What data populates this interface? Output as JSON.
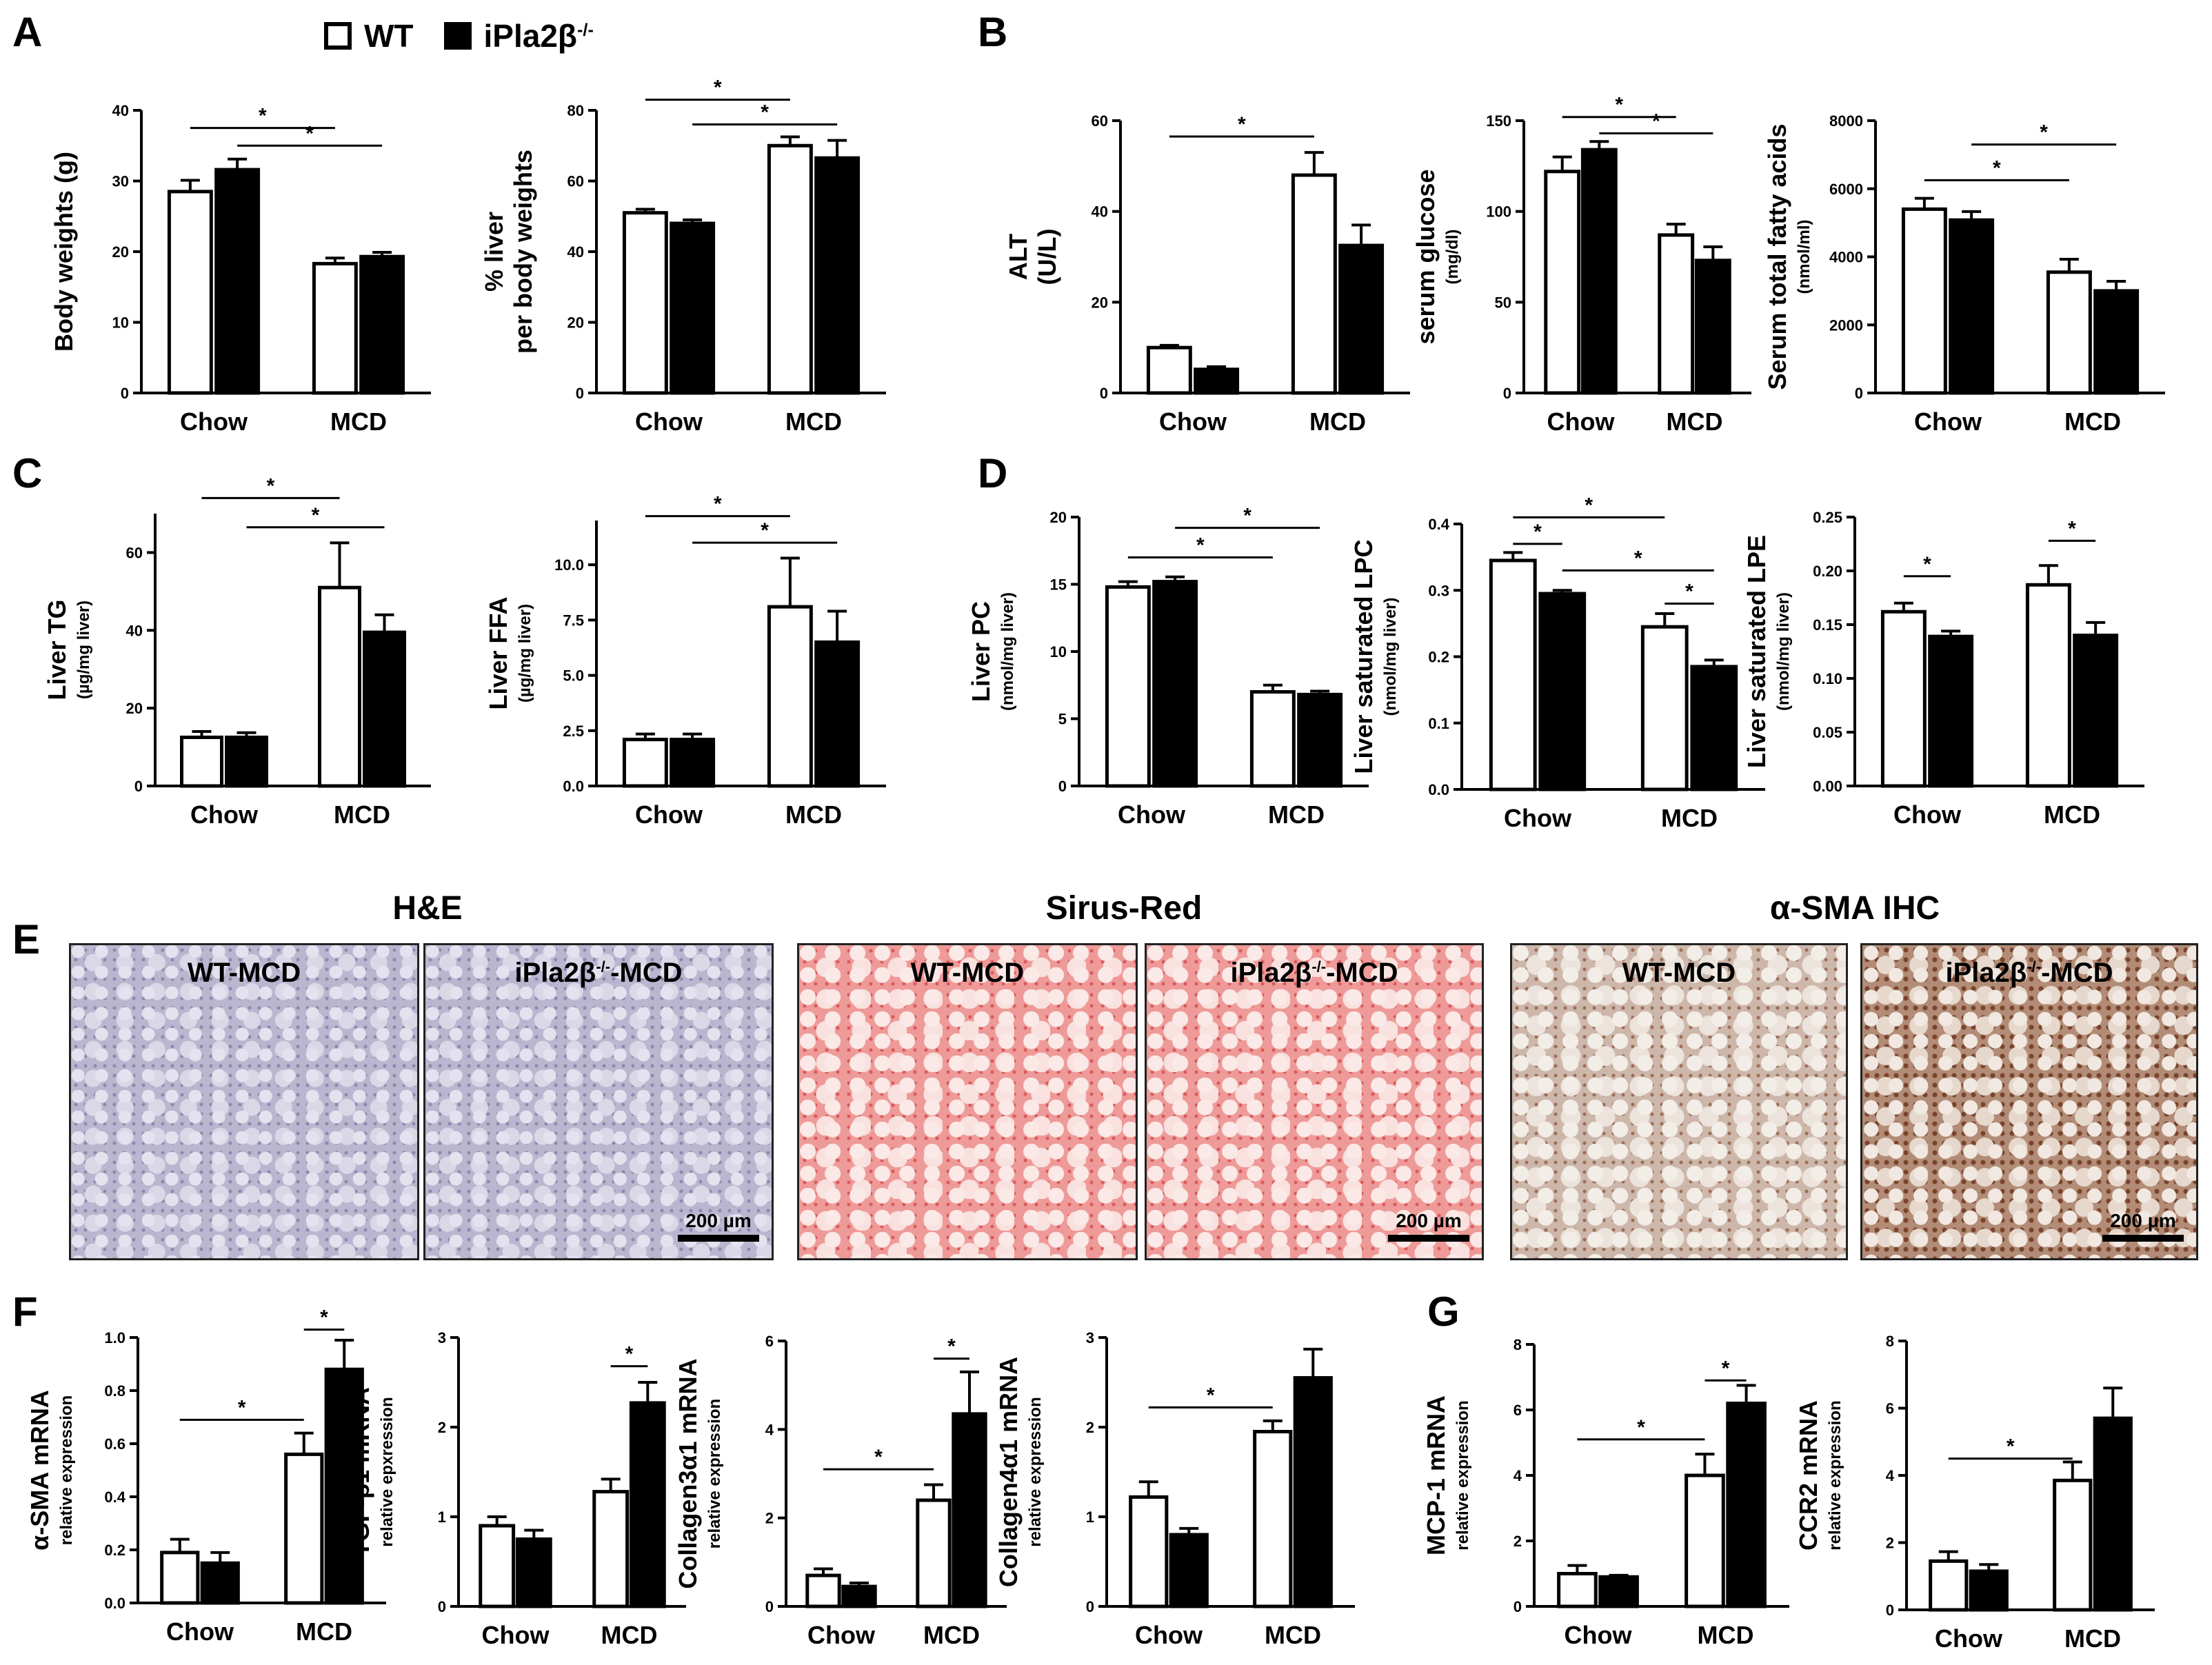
{
  "panel_letters": {
    "A": "A",
    "B": "B",
    "C": "C",
    "D": "D",
    "E": "E",
    "F": "F",
    "G": "G"
  },
  "legend": {
    "wt": "WT",
    "ko": "iPla2β",
    "ko_sup": "-/-"
  },
  "colors": {
    "wt_fill": "#ffffff",
    "ko_fill": "#000000",
    "stroke": "#000000"
  },
  "micrographs": {
    "titles": {
      "he": "H&E",
      "sr": "Sirus-Red",
      "sma": "α-SMA IHC"
    },
    "panels": [
      {
        "label": "WT-MCD",
        "sup": "",
        "stain": "he",
        "scale_bar": ""
      },
      {
        "label": "iPla2β",
        "sup": "-/-",
        "suffix": "-MCD",
        "stain": "he",
        "scale_bar": "200 µm"
      },
      {
        "label": "WT-MCD",
        "sup": "",
        "stain": "sr",
        "scale_bar": ""
      },
      {
        "label": "iPla2β",
        "sup": "-/-",
        "suffix": "-MCD",
        "stain": "sr",
        "scale_bar": "200 µm"
      },
      {
        "label": "WT-MCD",
        "sup": "",
        "stain": "sma",
        "scale_bar": ""
      },
      {
        "label": "iPla2β",
        "sup": "-/-",
        "suffix": "-MCD",
        "stain": "sma-ko",
        "scale_bar": "200 µm"
      }
    ]
  },
  "chart_data": [
    {
      "id": "A1",
      "type": "bar",
      "categories": [
        "Chow",
        "MCD"
      ],
      "ylabel": "Body weights (g)",
      "ysub": "",
      "ylim": [
        0,
        40
      ],
      "yticks": [
        0,
        10,
        20,
        30,
        40
      ],
      "series": [
        {
          "name": "WT",
          "values": [
            28.5,
            18.3
          ],
          "err": [
            1.6,
            0.8
          ]
        },
        {
          "name": "iPla2β-/-",
          "values": [
            31.6,
            19.3
          ],
          "err": [
            1.5,
            0.6
          ]
        }
      ],
      "sig": [
        {
          "from": [
            0,
            0
          ],
          "to": [
            1,
            0
          ],
          "level": 37.5,
          "label": "*"
        },
        {
          "from": [
            0,
            1
          ],
          "to": [
            1,
            1
          ],
          "level": 35,
          "label": "*"
        }
      ]
    },
    {
      "id": "A2",
      "type": "bar",
      "categories": [
        "Chow",
        "MCD"
      ],
      "ylabel": "% liver",
      "ylabel2": "per body weights",
      "ysub": "",
      "ylim": [
        0,
        80
      ],
      "yticks": [
        0,
        20,
        40,
        60,
        80
      ],
      "series": [
        {
          "name": "WT",
          "values": [
            51,
            70
          ],
          "err": [
            1,
            2.5
          ]
        },
        {
          "name": "iPla2β-/-",
          "values": [
            48,
            66.5
          ],
          "err": [
            1,
            5
          ]
        }
      ],
      "sig": [
        {
          "from": [
            0,
            0
          ],
          "to": [
            1,
            0
          ],
          "level": 83,
          "label": "*"
        },
        {
          "from": [
            0,
            1
          ],
          "to": [
            1,
            1
          ],
          "level": 76,
          "label": "*"
        }
      ]
    },
    {
      "id": "B1",
      "type": "bar",
      "categories": [
        "Chow",
        "MCD"
      ],
      "ylabel": "ALT",
      "ylabel2": "(U/L)",
      "ysub": "",
      "ylim": [
        0,
        60
      ],
      "yticks": [
        0,
        20,
        40,
        60
      ],
      "series": [
        {
          "name": "WT",
          "values": [
            10,
            48
          ],
          "err": [
            0.5,
            5
          ]
        },
        {
          "name": "iPla2β-/-",
          "values": [
            5.2,
            32.5
          ],
          "err": [
            0.6,
            4.5
          ]
        }
      ],
      "sig": [
        {
          "from": [
            0,
            0
          ],
          "to": [
            1,
            0
          ],
          "level": 56.5,
          "label": "*"
        }
      ]
    },
    {
      "id": "B2",
      "type": "bar",
      "categories": [
        "Chow",
        "MCD"
      ],
      "ylabel": "serum glucose",
      "ysub": "(mg/dl)",
      "ylim": [
        0,
        150
      ],
      "yticks": [
        0,
        50,
        100,
        150
      ],
      "series": [
        {
          "name": "WT",
          "values": [
            122,
            87
          ],
          "err": [
            8,
            6
          ]
        },
        {
          "name": "iPla2β-/-",
          "values": [
            134,
            73
          ],
          "err": [
            4.5,
            7.5
          ]
        }
      ],
      "sig": [
        {
          "from": [
            0,
            0
          ],
          "to": [
            1,
            0
          ],
          "level": 152,
          "label": "*"
        },
        {
          "from": [
            0,
            1
          ],
          "to": [
            1,
            1
          ],
          "level": 143,
          "label": "*"
        }
      ]
    },
    {
      "id": "B3",
      "type": "bar",
      "categories": [
        "Chow",
        "MCD"
      ],
      "ylabel": "Serum total fatty acids",
      "ysub": "(nmol/ml)",
      "ylim": [
        0,
        8000
      ],
      "yticks": [
        0,
        2000,
        4000,
        6000,
        8000
      ],
      "series": [
        {
          "name": "WT",
          "values": [
            5400,
            3550
          ],
          "err": [
            320,
            380
          ]
        },
        {
          "name": "iPla2β-/-",
          "values": [
            5080,
            3000
          ],
          "err": [
            250,
            280
          ]
        }
      ],
      "sig": [
        {
          "from": [
            0,
            0
          ],
          "to": [
            1,
            0
          ],
          "level": 6250,
          "label": "*"
        },
        {
          "from": [
            0,
            1
          ],
          "to": [
            1,
            1
          ],
          "level": 7300,
          "label": "*"
        }
      ]
    },
    {
      "id": "C1",
      "type": "bar",
      "categories": [
        "Chow",
        "MCD"
      ],
      "ylabel": "Liver TG",
      "ysub": "(µg/mg liver)",
      "ylim": [
        0,
        70
      ],
      "yticks": [
        0,
        20,
        40,
        60
      ],
      "series": [
        {
          "name": "WT",
          "values": [
            12.5,
            51
          ],
          "err": [
            1.5,
            11.5
          ]
        },
        {
          "name": "iPla2β-/-",
          "values": [
            12.5,
            39.5
          ],
          "err": [
            1.2,
            4.5
          ]
        }
      ],
      "sig": [
        {
          "from": [
            0,
            0
          ],
          "to": [
            1,
            0
          ],
          "level": 74,
          "label": "*"
        },
        {
          "from": [
            0,
            1
          ],
          "to": [
            1,
            1
          ],
          "level": 66.5,
          "label": "*"
        }
      ]
    },
    {
      "id": "C2",
      "type": "bar",
      "categories": [
        "Chow",
        "MCD"
      ],
      "ylabel": "Liver FFA",
      "ysub": "(µg/mg liver)",
      "ylim": [
        0,
        12
      ],
      "yticks": [
        0,
        2.5,
        5.0,
        7.5,
        10.0
      ],
      "ytick_labels": [
        "0.0",
        "2.5",
        "5.0",
        "7.5",
        "10.0"
      ],
      "series": [
        {
          "name": "WT",
          "values": [
            2.1,
            8.1
          ],
          "err": [
            0.25,
            2.2
          ]
        },
        {
          "name": "iPla2β-/-",
          "values": [
            2.1,
            6.5
          ],
          "err": [
            0.25,
            1.4
          ]
        }
      ],
      "sig": [
        {
          "from": [
            0,
            0
          ],
          "to": [
            1,
            0
          ],
          "level": 12.2,
          "label": "*"
        },
        {
          "from": [
            0,
            1
          ],
          "to": [
            1,
            1
          ],
          "level": 11.0,
          "label": "*"
        }
      ]
    },
    {
      "id": "D1",
      "type": "bar",
      "categories": [
        "Chow",
        "MCD"
      ],
      "ylabel": "Liver PC",
      "ysub": "(nmol/mg liver)",
      "ylim": [
        0,
        20
      ],
      "yticks": [
        0,
        5,
        10,
        15,
        20
      ],
      "series": [
        {
          "name": "WT",
          "values": [
            14.8,
            7.0
          ],
          "err": [
            0.4,
            0.5
          ]
        },
        {
          "name": "iPla2β-/-",
          "values": [
            15.2,
            6.8
          ],
          "err": [
            0.35,
            0.25
          ]
        }
      ],
      "sig": [
        {
          "from": [
            0,
            0
          ],
          "to": [
            1,
            0
          ],
          "level": 17,
          "label": "*"
        },
        {
          "from": [
            0,
            1
          ],
          "to": [
            1,
            1
          ],
          "level": 19.2,
          "label": "*"
        }
      ]
    },
    {
      "id": "D2",
      "type": "bar",
      "categories": [
        "Chow",
        "MCD"
      ],
      "ylabel": "Liver saturated LPC",
      "ysub": "(nmol/mg liver)",
      "ylim": [
        0,
        0.4
      ],
      "yticks": [
        0,
        0.1,
        0.2,
        0.3,
        0.4
      ],
      "ytick_labels": [
        "0.0",
        "0.1",
        "0.2",
        "0.3",
        "0.4"
      ],
      "series": [
        {
          "name": "WT",
          "values": [
            0.345,
            0.245
          ],
          "err": [
            0.012,
            0.02
          ]
        },
        {
          "name": "iPla2β-/-",
          "values": [
            0.295,
            0.185
          ],
          "err": [
            0.005,
            0.01
          ]
        }
      ],
      "sig": [
        {
          "from": [
            0,
            0
          ],
          "to": [
            1,
            0
          ],
          "level": 0.41,
          "label": "*"
        },
        {
          "from": [
            0,
            0
          ],
          "to": [
            0,
            1
          ],
          "level": 0.37,
          "label": "*"
        },
        {
          "from": [
            0,
            1
          ],
          "to": [
            1,
            1
          ],
          "level": 0.33,
          "label": "*"
        },
        {
          "from": [
            1,
            0
          ],
          "to": [
            1,
            1
          ],
          "level": 0.28,
          "label": "*"
        }
      ]
    },
    {
      "id": "D3",
      "type": "bar",
      "categories": [
        "Chow",
        "MCD"
      ],
      "ylabel": "Liver saturated LPE",
      "ysub": "(nmol/mg liver)",
      "ylim": [
        0,
        0.25
      ],
      "yticks": [
        0,
        0.05,
        0.1,
        0.15,
        0.2,
        0.25
      ],
      "ytick_labels": [
        "0.00",
        "0.05",
        "0.10",
        "0.15",
        "0.20",
        "0.25"
      ],
      "series": [
        {
          "name": "WT",
          "values": [
            0.162,
            0.187
          ],
          "err": [
            0.008,
            0.018
          ]
        },
        {
          "name": "iPla2β-/-",
          "values": [
            0.139,
            0.14
          ],
          "err": [
            0.005,
            0.012
          ]
        }
      ],
      "sig": [
        {
          "from": [
            0,
            0
          ],
          "to": [
            0,
            1
          ],
          "level": 0.195,
          "label": "*"
        },
        {
          "from": [
            1,
            0
          ],
          "to": [
            1,
            1
          ],
          "level": 0.228,
          "label": "*"
        }
      ]
    },
    {
      "id": "F1",
      "type": "bar",
      "categories": [
        "Chow",
        "MCD"
      ],
      "ylabel": "α-SMA mRNA",
      "ysub": "relative expression",
      "ylim": [
        0,
        1.0
      ],
      "yticks": [
        0,
        0.2,
        0.4,
        0.6,
        0.8,
        1.0
      ],
      "ytick_labels": [
        "0.0",
        "0.2",
        "0.4",
        "0.6",
        "0.8",
        "1.0"
      ],
      "series": [
        {
          "name": "WT",
          "values": [
            0.19,
            0.56
          ],
          "err": [
            0.05,
            0.08
          ]
        },
        {
          "name": "iPla2β-/-",
          "values": [
            0.15,
            0.88
          ],
          "err": [
            0.04,
            0.11
          ]
        }
      ],
      "sig": [
        {
          "from": [
            0,
            0
          ],
          "to": [
            1,
            0
          ],
          "level": 0.69,
          "label": "*"
        },
        {
          "from": [
            1,
            0
          ],
          "to": [
            1,
            1
          ],
          "level": 1.03,
          "label": "*"
        }
      ]
    },
    {
      "id": "F2",
      "type": "bar",
      "categories": [
        "Chow",
        "MCD"
      ],
      "ylabel": "TGF-β1 mRNA",
      "ysub": "relative epxression",
      "ylim": [
        0,
        3
      ],
      "yticks": [
        0,
        1,
        2,
        3
      ],
      "series": [
        {
          "name": "WT",
          "values": [
            0.9,
            1.28
          ],
          "err": [
            0.1,
            0.14
          ]
        },
        {
          "name": "iPla2β-/-",
          "values": [
            0.75,
            2.27
          ],
          "err": [
            0.1,
            0.23
          ]
        }
      ],
      "sig": [
        {
          "from": [
            1,
            0
          ],
          "to": [
            1,
            1
          ],
          "level": 2.68,
          "label": "*"
        }
      ]
    },
    {
      "id": "F3",
      "type": "bar",
      "categories": [
        "Chow",
        "MCD"
      ],
      "ylabel": "Collagen3α1 mRNA",
      "ysub": "relative expression",
      "ylim": [
        0,
        6
      ],
      "yticks": [
        0,
        2,
        4,
        6
      ],
      "series": [
        {
          "name": "WT",
          "values": [
            0.7,
            2.4
          ],
          "err": [
            0.15,
            0.35
          ]
        },
        {
          "name": "iPla2β-/-",
          "values": [
            0.45,
            4.35
          ],
          "err": [
            0.08,
            0.95
          ]
        }
      ],
      "sig": [
        {
          "from": [
            0,
            0
          ],
          "to": [
            1,
            0
          ],
          "level": 3.1,
          "label": "*"
        },
        {
          "from": [
            1,
            0
          ],
          "to": [
            1,
            1
          ],
          "level": 5.6,
          "label": "*"
        }
      ]
    },
    {
      "id": "F4",
      "type": "bar",
      "categories": [
        "Chow",
        "MCD"
      ],
      "ylabel": "Collagen4α1 mRNA",
      "ysub": "relative expression",
      "ylim": [
        0,
        3
      ],
      "yticks": [
        0,
        1,
        2,
        3
      ],
      "series": [
        {
          "name": "WT",
          "values": [
            1.22,
            1.95
          ],
          "err": [
            0.17,
            0.12
          ]
        },
        {
          "name": "iPla2β-/-",
          "values": [
            0.8,
            2.55
          ],
          "err": [
            0.07,
            0.32
          ]
        }
      ],
      "sig": [
        {
          "from": [
            0,
            0
          ],
          "to": [
            1,
            0
          ],
          "level": 2.22,
          "label": "*"
        }
      ]
    },
    {
      "id": "G1",
      "type": "bar",
      "categories": [
        "Chow",
        "MCD"
      ],
      "ylabel": "MCP-1 mRNA",
      "ysub": "relative expression",
      "ylim": [
        0,
        8
      ],
      "yticks": [
        0,
        2,
        4,
        6,
        8
      ],
      "series": [
        {
          "name": "WT",
          "values": [
            1.0,
            4.0
          ],
          "err": [
            0.25,
            0.65
          ]
        },
        {
          "name": "iPla2β-/-",
          "values": [
            0.9,
            6.2
          ],
          "err": [
            0.05,
            0.55
          ]
        }
      ],
      "sig": [
        {
          "from": [
            0,
            0
          ],
          "to": [
            1,
            0
          ],
          "level": 5.1,
          "label": "*"
        },
        {
          "from": [
            1,
            0
          ],
          "to": [
            1,
            1
          ],
          "level": 6.9,
          "label": "*"
        }
      ]
    },
    {
      "id": "G2",
      "type": "bar",
      "categories": [
        "Chow",
        "MCD"
      ],
      "ylabel": "CCR2 mRNA",
      "ysub": "relative expression",
      "ylim": [
        0,
        8
      ],
      "yticks": [
        0,
        2,
        4,
        6,
        8
      ],
      "series": [
        {
          "name": "WT",
          "values": [
            1.45,
            3.85
          ],
          "err": [
            0.28,
            0.55
          ]
        },
        {
          "name": "iPla2β-/-",
          "values": [
            1.15,
            5.7
          ],
          "err": [
            0.2,
            0.9
          ]
        }
      ],
      "sig": [
        {
          "from": [
            0,
            0
          ],
          "to": [
            1,
            0
          ],
          "level": 4.5,
          "label": "*"
        }
      ]
    }
  ]
}
